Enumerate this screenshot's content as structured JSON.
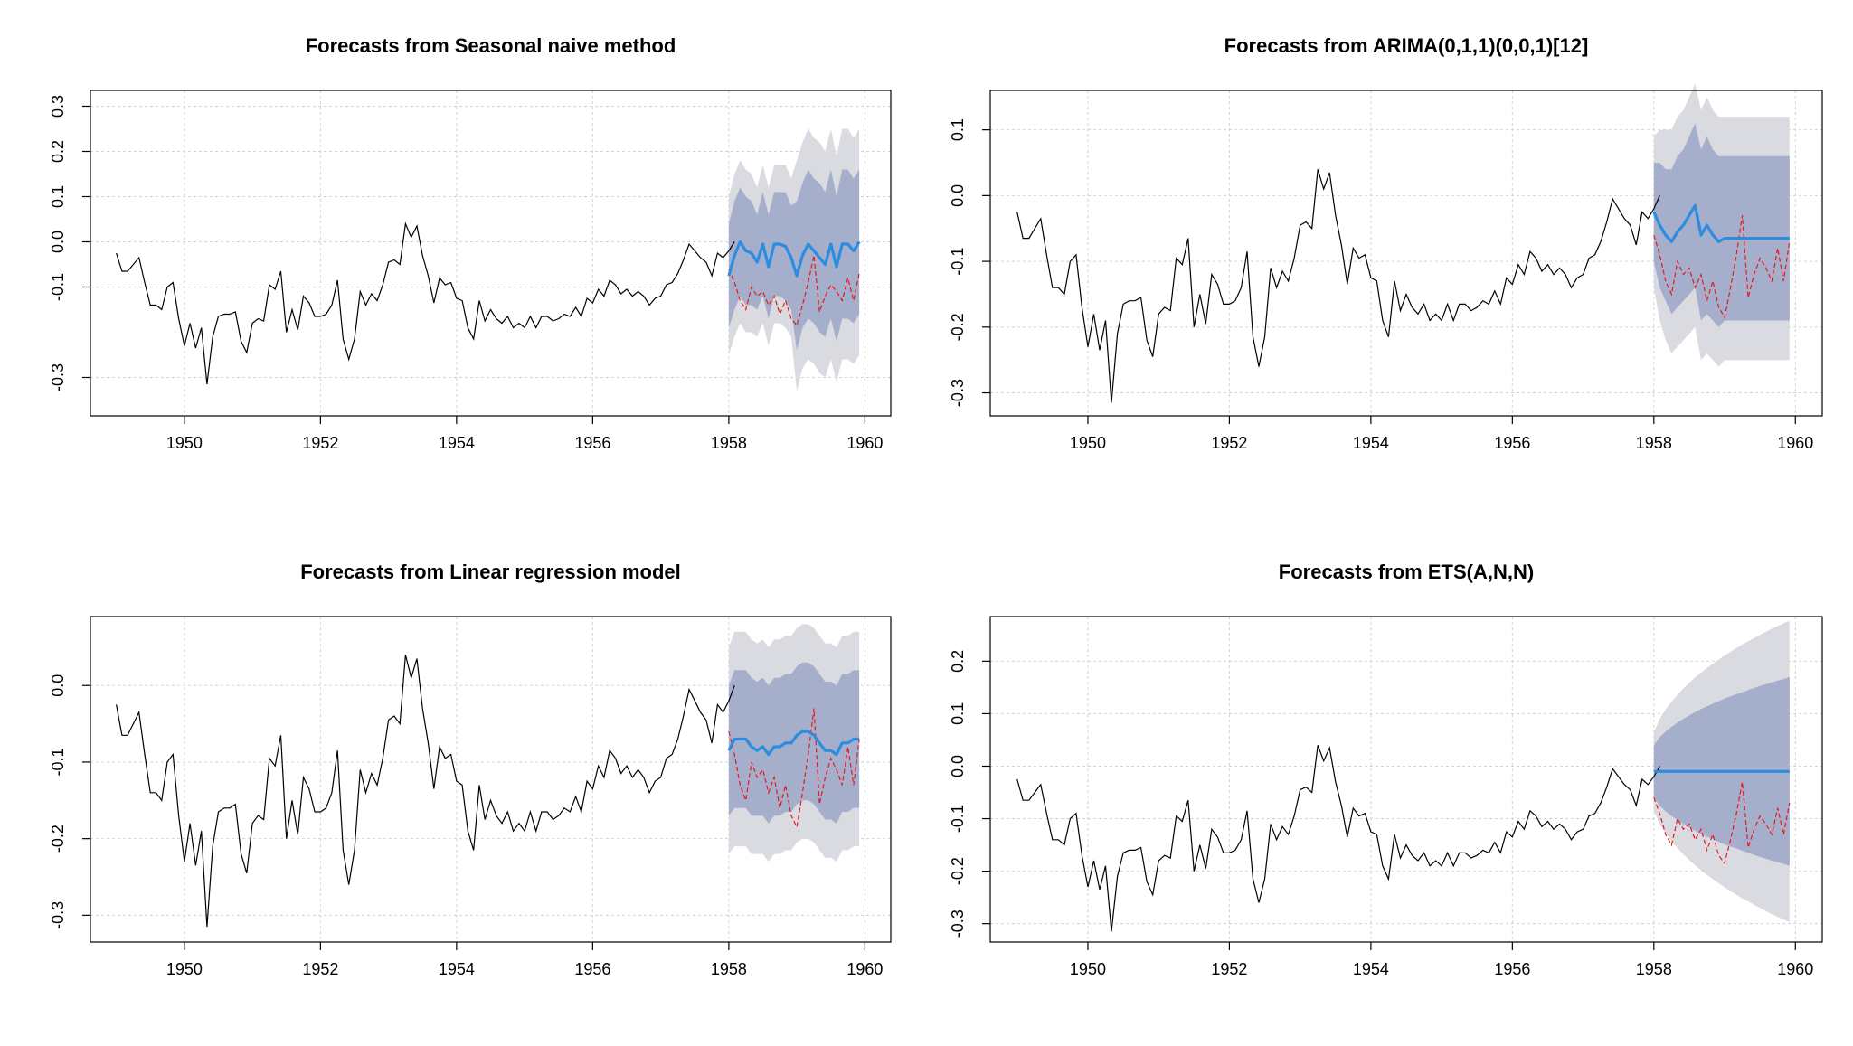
{
  "figure": {
    "background": "#ffffff"
  },
  "colors": {
    "history": "#000000",
    "forecast": "#2b8ce0",
    "actual": "#e8191a",
    "band80": "#a5aecb",
    "band95": "#dadae1",
    "grid": "#d3d3d3"
  },
  "base_series": {
    "start": 1949.0,
    "step": 0.0833333,
    "values": [
      -0.025,
      -0.065,
      -0.065,
      -0.05,
      -0.035,
      -0.09,
      -0.14,
      -0.14,
      -0.15,
      -0.1,
      -0.09,
      -0.17,
      -0.23,
      -0.18,
      -0.235,
      -0.19,
      -0.315,
      -0.21,
      -0.165,
      -0.16,
      -0.16,
      -0.155,
      -0.22,
      -0.245,
      -0.18,
      -0.17,
      -0.175,
      -0.095,
      -0.105,
      -0.065,
      -0.2,
      -0.15,
      -0.195,
      -0.12,
      -0.135,
      -0.165,
      -0.165,
      -0.16,
      -0.14,
      -0.085,
      -0.215,
      -0.26,
      -0.215,
      -0.11,
      -0.14,
      -0.115,
      -0.13,
      -0.095,
      -0.045,
      -0.04,
      -0.05,
      0.04,
      0.01,
      0.035,
      -0.03,
      -0.075,
      -0.135,
      -0.08,
      -0.095,
      -0.09,
      -0.125,
      -0.13,
      -0.19,
      -0.215,
      -0.13,
      -0.175,
      -0.15,
      -0.17,
      -0.18,
      -0.165,
      -0.19,
      -0.18,
      -0.19,
      -0.165,
      -0.19,
      -0.165,
      -0.165,
      -0.175,
      -0.17,
      -0.16,
      -0.165,
      -0.145,
      -0.165,
      -0.125,
      -0.135,
      -0.105,
      -0.12,
      -0.085,
      -0.095,
      -0.115,
      -0.105,
      -0.12,
      -0.11,
      -0.12,
      -0.14,
      -0.125,
      -0.12,
      -0.095,
      -0.09,
      -0.07,
      -0.04,
      -0.005,
      -0.02,
      -0.035,
      -0.045,
      -0.075,
      -0.025,
      -0.035,
      -0.02,
      0.0
    ]
  },
  "actual_test": [
    -0.06,
    -0.09,
    -0.13,
    -0.15,
    -0.1,
    -0.12,
    -0.11,
    -0.14,
    -0.12,
    -0.16,
    -0.13,
    -0.17,
    -0.185,
    -0.14,
    -0.09,
    -0.03,
    -0.155,
    -0.12,
    -0.095,
    -0.11,
    -0.13,
    -0.08,
    -0.13,
    -0.07
  ],
  "charts": [
    {
      "id": "snaive",
      "title": "Forecasts from Seasonal naive method",
      "x_ticks": [
        "1950",
        "1952",
        "1954",
        "1956",
        "1958",
        "1960"
      ],
      "y_ticks": [
        "-0.3",
        "-0.1",
        "0.0",
        "0.1",
        "0.2",
        "0.3"
      ],
      "y_tick_values": [
        -0.3,
        -0.1,
        0.0,
        0.1,
        0.2,
        0.3
      ],
      "x_range": [
        1948.62,
        1960.38
      ],
      "y_range": [
        -0.385,
        0.335
      ],
      "chart_data": {
        "type": "line",
        "title": "Forecasts from Seasonal naive method",
        "x_start": 1958.0,
        "forecast": [
          -0.075,
          -0.03,
          0.0,
          -0.02,
          -0.025,
          -0.045,
          -0.005,
          -0.055,
          -0.005,
          -0.005,
          -0.01,
          -0.035,
          -0.075,
          -0.03,
          -0.005,
          -0.02,
          -0.035,
          -0.05,
          -0.005,
          -0.055,
          -0.005,
          -0.005,
          -0.02,
          0.0
        ],
        "lo80": [
          -0.19,
          -0.15,
          -0.12,
          -0.14,
          -0.14,
          -0.15,
          -0.12,
          -0.17,
          -0.12,
          -0.12,
          -0.13,
          -0.15,
          -0.24,
          -0.19,
          -0.17,
          -0.18,
          -0.2,
          -0.21,
          -0.17,
          -0.22,
          -0.17,
          -0.17,
          -0.18,
          -0.16
        ],
        "hi80": [
          0.04,
          0.09,
          0.12,
          0.1,
          0.09,
          0.06,
          0.11,
          0.06,
          0.11,
          0.11,
          0.11,
          0.08,
          0.09,
          0.13,
          0.16,
          0.14,
          0.13,
          0.11,
          0.16,
          0.1,
          0.16,
          0.16,
          0.14,
          0.16
        ],
        "lo95": [
          -0.25,
          -0.21,
          -0.18,
          -0.2,
          -0.2,
          -0.21,
          -0.18,
          -0.23,
          -0.18,
          -0.18,
          -0.19,
          -0.21,
          -0.33,
          -0.28,
          -0.26,
          -0.27,
          -0.29,
          -0.3,
          -0.26,
          -0.31,
          -0.26,
          -0.26,
          -0.27,
          -0.25
        ],
        "hi95": [
          0.1,
          0.15,
          0.18,
          0.16,
          0.15,
          0.12,
          0.17,
          0.12,
          0.17,
          0.17,
          0.17,
          0.14,
          0.18,
          0.22,
          0.25,
          0.23,
          0.22,
          0.2,
          0.25,
          0.19,
          0.25,
          0.25,
          0.23,
          0.25
        ]
      }
    },
    {
      "id": "arima",
      "title": "Forecasts from ARIMA(0,1,1)(0,0,1)[12]",
      "x_ticks": [
        "1950",
        "1952",
        "1954",
        "1956",
        "1958",
        "1960"
      ],
      "y_ticks": [
        "-0.3",
        "-0.2",
        "-0.1",
        "0.0",
        "0.1"
      ],
      "y_tick_values": [
        -0.3,
        -0.2,
        -0.1,
        0.0,
        0.1
      ],
      "x_range": [
        1948.62,
        1960.38
      ],
      "y_range": [
        -0.335,
        0.16
      ],
      "chart_data": {
        "type": "line",
        "title": "Forecasts from ARIMA(0,1,1)(0,0,1)[12]",
        "x_start": 1958.0,
        "forecast": [
          -0.025,
          -0.045,
          -0.06,
          -0.07,
          -0.055,
          -0.045,
          -0.03,
          -0.015,
          -0.06,
          -0.045,
          -0.06,
          -0.07,
          -0.065,
          -0.065,
          -0.065,
          -0.065,
          -0.065,
          -0.065,
          -0.065,
          -0.065,
          -0.065,
          -0.065,
          -0.065,
          -0.065
        ],
        "lo80": [
          -0.1,
          -0.14,
          -0.16,
          -0.18,
          -0.17,
          -0.16,
          -0.15,
          -0.14,
          -0.19,
          -0.18,
          -0.19,
          -0.2,
          -0.19,
          -0.19,
          -0.19,
          -0.19,
          -0.19,
          -0.19,
          -0.19,
          -0.19,
          -0.19,
          -0.19,
          -0.19,
          -0.19
        ],
        "hi80": [
          0.05,
          0.05,
          0.04,
          0.04,
          0.06,
          0.07,
          0.09,
          0.11,
          0.07,
          0.09,
          0.07,
          0.06,
          0.06,
          0.06,
          0.06,
          0.06,
          0.06,
          0.06,
          0.06,
          0.06,
          0.06,
          0.06,
          0.06,
          0.06
        ],
        "lo95": [
          -0.14,
          -0.19,
          -0.22,
          -0.24,
          -0.23,
          -0.22,
          -0.21,
          -0.2,
          -0.25,
          -0.24,
          -0.25,
          -0.26,
          -0.25,
          -0.25,
          -0.25,
          -0.25,
          -0.25,
          -0.25,
          -0.25,
          -0.25,
          -0.25,
          -0.25,
          -0.25,
          -0.25
        ],
        "hi95": [
          0.09,
          0.1,
          0.1,
          0.1,
          0.12,
          0.13,
          0.15,
          0.17,
          0.13,
          0.15,
          0.13,
          0.12,
          0.12,
          0.12,
          0.12,
          0.12,
          0.12,
          0.12,
          0.12,
          0.12,
          0.12,
          0.12,
          0.12,
          0.12
        ]
      }
    },
    {
      "id": "linreg",
      "title": "Forecasts from Linear regression model",
      "x_ticks": [
        "1950",
        "1952",
        "1954",
        "1956",
        "1958",
        "1960"
      ],
      "y_ticks": [
        "-0.3",
        "-0.2",
        "-0.1",
        "0.0"
      ],
      "y_tick_values": [
        -0.3,
        -0.2,
        -0.1,
        0.0
      ],
      "x_range": [
        1948.62,
        1960.38
      ],
      "y_range": [
        -0.335,
        0.09
      ],
      "chart_data": {
        "type": "line",
        "title": "Forecasts from Linear regression model",
        "x_start": 1958.0,
        "forecast": [
          -0.085,
          -0.07,
          -0.07,
          -0.07,
          -0.08,
          -0.085,
          -0.08,
          -0.09,
          -0.08,
          -0.08,
          -0.075,
          -0.075,
          -0.065,
          -0.06,
          -0.06,
          -0.065,
          -0.075,
          -0.085,
          -0.085,
          -0.09,
          -0.075,
          -0.075,
          -0.07,
          -0.07
        ],
        "lo80": [
          -0.17,
          -0.16,
          -0.16,
          -0.16,
          -0.17,
          -0.17,
          -0.17,
          -0.18,
          -0.17,
          -0.17,
          -0.165,
          -0.165,
          -0.155,
          -0.15,
          -0.15,
          -0.155,
          -0.165,
          -0.175,
          -0.175,
          -0.18,
          -0.165,
          -0.165,
          -0.16,
          -0.16
        ],
        "hi80": [
          0.0,
          0.02,
          0.02,
          0.02,
          0.01,
          0.005,
          0.01,
          0.0,
          0.01,
          0.01,
          0.015,
          0.015,
          0.025,
          0.03,
          0.03,
          0.025,
          0.015,
          0.005,
          0.005,
          0.0,
          0.015,
          0.015,
          0.02,
          0.02
        ],
        "lo95": [
          -0.22,
          -0.21,
          -0.21,
          -0.21,
          -0.22,
          -0.22,
          -0.22,
          -0.23,
          -0.22,
          -0.22,
          -0.215,
          -0.215,
          -0.205,
          -0.2,
          -0.2,
          -0.205,
          -0.215,
          -0.225,
          -0.225,
          -0.23,
          -0.215,
          -0.215,
          -0.21,
          -0.21
        ],
        "hi95": [
          0.05,
          0.07,
          0.07,
          0.07,
          0.06,
          0.055,
          0.06,
          0.05,
          0.06,
          0.06,
          0.065,
          0.065,
          0.075,
          0.08,
          0.08,
          0.075,
          0.065,
          0.055,
          0.055,
          0.05,
          0.065,
          0.065,
          0.07,
          0.07
        ]
      }
    },
    {
      "id": "ets",
      "title": "Forecasts from ETS(A,N,N)",
      "x_ticks": [
        "1950",
        "1952",
        "1954",
        "1956",
        "1958",
        "1960"
      ],
      "y_ticks": [
        "-0.3",
        "-0.2",
        "-0.1",
        "0.0",
        "0.1",
        "0.2"
      ],
      "y_tick_values": [
        -0.3,
        -0.2,
        -0.1,
        0.0,
        0.1,
        0.2
      ],
      "x_range": [
        1948.62,
        1960.38
      ],
      "y_range": [
        -0.335,
        0.285
      ],
      "chart_data": {
        "type": "line",
        "title": "Forecasts from ETS(A,N,N)",
        "x_start": 1958.0,
        "forecast": [
          -0.01,
          -0.01,
          -0.01,
          -0.01,
          -0.01,
          -0.01,
          -0.01,
          -0.01,
          -0.01,
          -0.01,
          -0.01,
          -0.01,
          -0.01,
          -0.01,
          -0.01,
          -0.01,
          -0.01,
          -0.01,
          -0.01,
          -0.01,
          -0.01,
          -0.01,
          -0.01,
          -0.01
        ],
        "lo80": [
          -0.06,
          -0.075,
          -0.086,
          -0.095,
          -0.103,
          -0.11,
          -0.117,
          -0.123,
          -0.129,
          -0.134,
          -0.139,
          -0.144,
          -0.149,
          -0.153,
          -0.157,
          -0.161,
          -0.165,
          -0.169,
          -0.173,
          -0.176,
          -0.18,
          -0.183,
          -0.186,
          -0.19
        ],
        "hi80": [
          0.04,
          0.055,
          0.066,
          0.075,
          0.083,
          0.09,
          0.097,
          0.103,
          0.109,
          0.114,
          0.119,
          0.124,
          0.129,
          0.133,
          0.137,
          0.141,
          0.145,
          0.149,
          0.153,
          0.156,
          0.16,
          0.163,
          0.166,
          0.17
        ],
        "lo95": [
          -0.085,
          -0.11,
          -0.128,
          -0.143,
          -0.156,
          -0.168,
          -0.179,
          -0.189,
          -0.198,
          -0.207,
          -0.215,
          -0.223,
          -0.231,
          -0.238,
          -0.245,
          -0.252,
          -0.258,
          -0.264,
          -0.27,
          -0.276,
          -0.282,
          -0.287,
          -0.292,
          -0.297
        ],
        "hi95": [
          0.065,
          0.09,
          0.108,
          0.123,
          0.136,
          0.148,
          0.159,
          0.169,
          0.178,
          0.187,
          0.195,
          0.203,
          0.211,
          0.218,
          0.225,
          0.232,
          0.238,
          0.244,
          0.25,
          0.256,
          0.262,
          0.267,
          0.272,
          0.277
        ]
      }
    }
  ]
}
